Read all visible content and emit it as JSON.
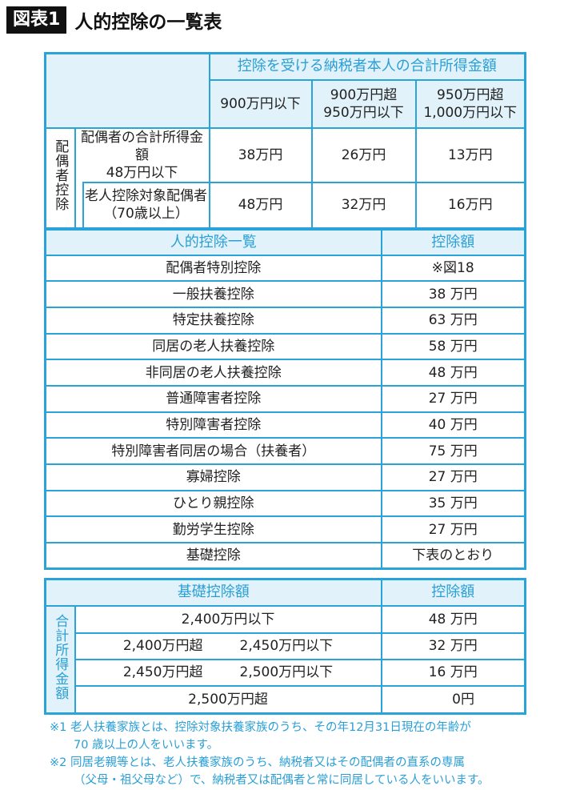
{
  "title": {
    "badge": "図表1",
    "text": "人的控除の一覧表"
  },
  "table1": {
    "header": "控除を受ける納税者本人の合計所得金額",
    "columns": [
      [
        "900万円以下"
      ],
      [
        "900万円超",
        "950万円以下"
      ],
      [
        "950万円超",
        "1,000万円以下"
      ]
    ],
    "group_label": "配偶者控除",
    "rows": [
      {
        "label": [
          "配偶者の合計所得金額",
          "48万円以下"
        ],
        "values": [
          "38万円",
          "26万円",
          "13万円"
        ]
      },
      {
        "label": [
          "老人控除対象配偶者",
          "（70歳以上）"
        ],
        "values": [
          "48万円",
          "32万円",
          "16万円"
        ]
      }
    ]
  },
  "table2": {
    "headers": [
      "人的控除一覧",
      "控除額"
    ],
    "rows": [
      [
        "配偶者特別控除",
        "※図18"
      ],
      [
        "一般扶養控除",
        "38 万円"
      ],
      [
        "特定扶養控除",
        "63 万円"
      ],
      [
        "同居の老人扶養控除",
        "58 万円"
      ],
      [
        "非同居の老人扶養控除",
        "48 万円"
      ],
      [
        "普通障害者控除",
        "27 万円"
      ],
      [
        "特別障害者控除",
        "40 万円"
      ],
      [
        "特別障害者同居の場合（扶養者）",
        "75 万円"
      ],
      [
        "寡婦控除",
        "27 万円"
      ],
      [
        "ひとり親控除",
        "35 万円"
      ],
      [
        "勤労学生控除",
        "27 万円"
      ],
      [
        "基礎控除",
        "下表のとおり"
      ]
    ]
  },
  "table3": {
    "headers": [
      "基礎控除額",
      "控除額"
    ],
    "group_label": "合計所得金額",
    "rows": [
      {
        "range": [
          "2,400万円以下"
        ],
        "value": "48 万円"
      },
      {
        "range": [
          "2,400万円超",
          "2,450万円以下"
        ],
        "value": "32 万円"
      },
      {
        "range": [
          "2,450万円超",
          "2,500万円以下"
        ],
        "value": "16 万円"
      },
      {
        "range": [
          "2,500万円超"
        ],
        "value": "0円"
      }
    ]
  },
  "notes": [
    [
      "※1 老人扶養家族とは、控除対象扶養家族のうち、その年12月31日現在の年齢が",
      "70 歳以上の人をいいます。"
    ],
    [
      "※2 同居老親等とは、老人扶養家族のうち、納税者又はその配偶者の直系の専属",
      "（父母・祖父母など）で、納税者又は配偶者と常に同居している人をいいます。"
    ]
  ],
  "colors": {
    "accent": "#2aa3d9",
    "header_fill": "#e1f2fa",
    "title_bg": "#111111"
  }
}
